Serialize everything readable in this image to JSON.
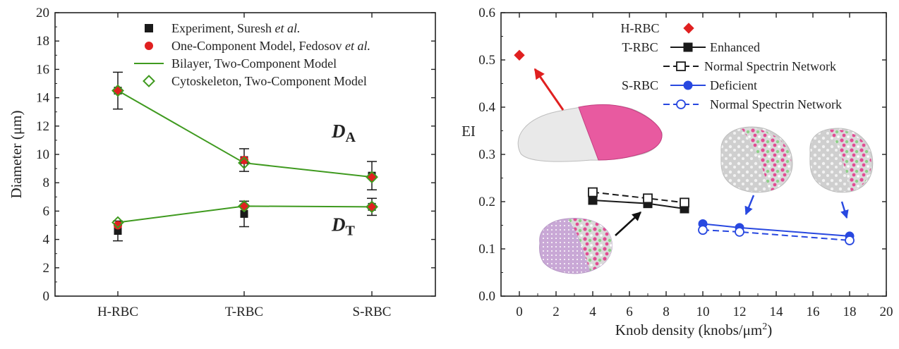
{
  "chart_data": [
    {
      "type": "line",
      "panel": "left",
      "categories": [
        "H-RBC",
        "T-RBC",
        "S-RBC"
      ],
      "ylabel": "Diameter (μm)",
      "ylim": [
        0,
        20
      ],
      "yticks": [
        0,
        2,
        4,
        6,
        8,
        10,
        12,
        14,
        16,
        18,
        20
      ],
      "legend": {
        "placement": "top",
        "entries": [
          {
            "pre": "Experiment, Suresh ",
            "em": "et al.",
            "marker": "square",
            "color": "#1a1a1a"
          },
          {
            "pre": "One-Component Model, Fedosov ",
            "em": "et al.",
            "marker": "circle",
            "color": "#e02020"
          },
          {
            "pre": "Bilayer, Two-Component Model",
            "em": "",
            "marker": "line",
            "color": "#3f9a1f"
          },
          {
            "pre": "Cytoskeleton, Two-Component Model",
            "em": "",
            "marker": "diamond",
            "color": "#3f9a1f"
          }
        ]
      },
      "annotations": [
        {
          "main": "D",
          "sub": "A",
          "x": 2,
          "y": 11.2
        },
        {
          "main": "D",
          "sub": "T",
          "x": 2,
          "y": 4.6
        }
      ],
      "series": [
        {
          "group": "DA",
          "kind": "experiment",
          "values": [
            14.5,
            9.6,
            8.5
          ],
          "err": [
            1.3,
            0.8,
            1.0
          ]
        },
        {
          "group": "DA",
          "kind": "one-component",
          "values": [
            14.5,
            9.6,
            8.4
          ]
        },
        {
          "group": "DA",
          "kind": "bilayer",
          "values": [
            14.5,
            9.4,
            8.4
          ]
        },
        {
          "group": "DA",
          "kind": "cytoskeleton",
          "values": [
            14.5,
            9.4,
            8.4
          ]
        },
        {
          "group": "DT",
          "kind": "experiment",
          "values": [
            4.6,
            5.8,
            6.3
          ],
          "err": [
            0.7,
            0.9,
            0.6
          ]
        },
        {
          "group": "DT",
          "kind": "one-component",
          "values": [
            5.0,
            6.3,
            6.3
          ]
        },
        {
          "group": "DT",
          "kind": "bilayer",
          "values": [
            5.2,
            6.35,
            6.3
          ]
        },
        {
          "group": "DT",
          "kind": "cytoskeleton",
          "values": [
            5.2,
            6.35,
            6.3
          ]
        }
      ]
    },
    {
      "type": "line",
      "panel": "right",
      "xlabel": "Knob density (knobs/μm",
      "xlabel_sup": "2",
      "xlabel_end": ")",
      "ylabel": "EI",
      "xlim": [
        -1,
        20
      ],
      "ylim": [
        0,
        0.6
      ],
      "xticks": [
        0,
        2,
        4,
        6,
        8,
        10,
        12,
        14,
        16,
        18,
        20
      ],
      "yticks": [
        "0.0",
        "0.1",
        "0.2",
        "0.3",
        "0.4",
        "0.5",
        "0.6"
      ],
      "legend": {
        "placement": "top",
        "entries": [
          {
            "group": "H-RBC",
            "label": "",
            "marker": "diamond-filled",
            "line": "none",
            "color": "#e02020"
          },
          {
            "group": "T-RBC",
            "label": "Enhanced",
            "marker": "square-filled",
            "line": "solid",
            "color": "#1a1a1a"
          },
          {
            "group": "",
            "label": "Normal  Spectrin Network",
            "marker": "square-open",
            "line": "dashed",
            "color": "#1a1a1a"
          },
          {
            "group": "S-RBC",
            "label": "Deficient",
            "marker": "circle-filled",
            "line": "solid",
            "color": "#2848e0"
          },
          {
            "group": "",
            "label": "Normal  Spectrin Network",
            "marker": "circle-open",
            "line": "dashed",
            "color": "#2848e0"
          }
        ]
      },
      "series": [
        {
          "name": "H-RBC",
          "x": [
            0
          ],
          "y": [
            0.51
          ],
          "marker": "diamond-filled",
          "line": "none",
          "color": "#e02020"
        },
        {
          "name": "T-RBC Enhanced",
          "x": [
            4,
            7,
            9
          ],
          "y": [
            0.203,
            0.196,
            0.185
          ],
          "marker": "square-filled",
          "line": "solid",
          "color": "#1a1a1a"
        },
        {
          "name": "T-RBC Normal Spectrin Network",
          "x": [
            4,
            7,
            9
          ],
          "y": [
            0.22,
            0.207,
            0.198
          ],
          "marker": "square-open",
          "line": "dashed",
          "color": "#1a1a1a"
        },
        {
          "name": "S-RBC Deficient",
          "x": [
            10,
            12,
            18
          ],
          "y": [
            0.153,
            0.145,
            0.127
          ],
          "marker": "circle-filled",
          "line": "solid",
          "color": "#2848e0"
        },
        {
          "name": "S-RBC Normal Spectrin Network",
          "x": [
            10,
            12,
            18
          ],
          "y": [
            0.14,
            0.136,
            0.118
          ],
          "marker": "circle-open",
          "line": "dashed",
          "color": "#2848e0"
        }
      ]
    }
  ]
}
